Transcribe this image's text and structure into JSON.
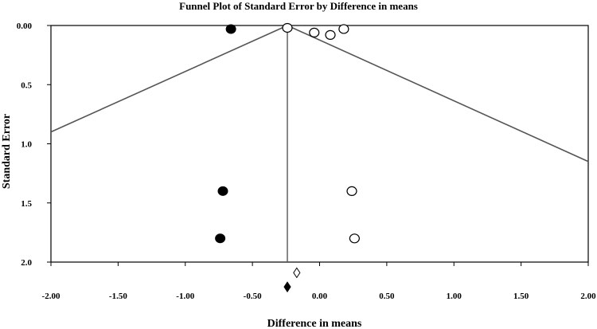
{
  "chart_data": {
    "type": "scatter",
    "title": "Funnel Plot of Standard Error by Difference in means",
    "xlabel": "Difference in means",
    "ylabel": "Standard Error",
    "xlim": [
      -2.0,
      2.0
    ],
    "ylim": [
      0.0,
      2.0
    ],
    "y_inverted": true,
    "x_ticks": [
      "-2.00",
      "-1.50",
      "-1.00",
      "-0.50",
      "0.00",
      "0.50",
      "1.00",
      "1.50",
      "2.00"
    ],
    "x_tick_values": [
      -2.0,
      -1.5,
      -1.0,
      -0.5,
      0.0,
      0.5,
      1.0,
      1.5,
      2.0
    ],
    "y_ticks": [
      "0.00",
      "0.5",
      "1.0",
      "1.5",
      "2.0"
    ],
    "y_tick_values": [
      0.0,
      0.5,
      1.0,
      1.5,
      2.0
    ],
    "observed_studies": [
      {
        "x": -0.24,
        "y": 0.02
      },
      {
        "x": -0.04,
        "y": 0.06
      },
      {
        "x": 0.08,
        "y": 0.08
      },
      {
        "x": 0.18,
        "y": 0.03
      },
      {
        "x": 0.24,
        "y": 1.4
      },
      {
        "x": 0.26,
        "y": 1.8
      }
    ],
    "imputed_studies": [
      {
        "x": -0.66,
        "y": 0.03
      },
      {
        "x": -0.72,
        "y": 1.4
      },
      {
        "x": -0.74,
        "y": 1.8
      }
    ],
    "mean_effect": -0.24,
    "funnel_lines": [
      {
        "x1": -0.24,
        "y1": 0.0,
        "x2": -2.0,
        "y2": 0.9
      },
      {
        "x1": -0.24,
        "y1": 0.0,
        "x2": 2.0,
        "y2": 1.15
      }
    ],
    "observed_summary": {
      "x": -0.17,
      "y": 2.09
    },
    "adjusted_summary": {
      "x": -0.24,
      "y": 2.21
    },
    "colors": {
      "line": "#555555",
      "axis": "#000000",
      "point_fill_imputed": "#000000",
      "point_fill_observed": "#ffffff"
    }
  }
}
